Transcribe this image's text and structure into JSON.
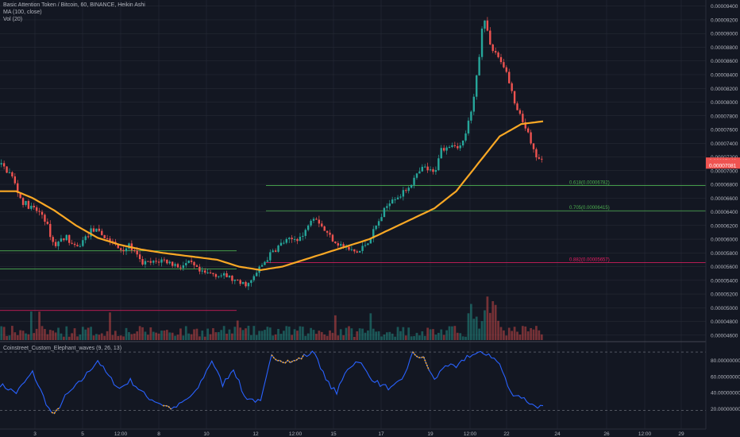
{
  "legend": {
    "title": "Basic Attention Token / Bitcoin, 60, BINANCE, Heikin Ashi",
    "ma": "MA (100, close)",
    "vol": "Vol (20)"
  },
  "oscillator": {
    "title": "Coinstreet_Custom_Elephant_waves (9, 26, 13)",
    "ticks": [
      "80.00000000",
      "60.00000000",
      "40.00000000",
      "20.00000000"
    ],
    "tick_values": [
      80,
      60,
      40,
      20
    ],
    "ylim": [
      5,
      95
    ],
    "levels": [
      90,
      18
    ]
  },
  "price_axis": {
    "ticks": [
      "0.00009400",
      "0.00009200",
      "0.00009000",
      "0.00008800",
      "0.00008600",
      "0.00008400",
      "0.00008200",
      "0.00008000",
      "0.00007800",
      "0.00007600",
      "0.00007400",
      "0.00007200",
      "0.00007000",
      "0.00006800",
      "0.00006600",
      "0.00006400",
      "0.00006200",
      "0.00006000",
      "0.00005800",
      "0.00005600",
      "0.00005400",
      "0.00005200",
      "0.00005000",
      "0.00004800",
      "0.00004600"
    ],
    "tick_values": [
      9400,
      9200,
      9000,
      8800,
      8600,
      8400,
      8200,
      8000,
      7800,
      7600,
      7400,
      7200,
      7000,
      6800,
      6600,
      6400,
      6200,
      6000,
      5800,
      5600,
      5400,
      5200,
      5000,
      4800,
      4600
    ],
    "ylim": [
      4540,
      9420
    ],
    "unit_note": "price in BTC (values ×1e-8)",
    "current_labels": [
      "0.00007140",
      "00:51:12",
      "0.00007081"
    ]
  },
  "time_axis": {
    "labels": [
      "3",
      "5",
      "12:00",
      "8",
      "10",
      "12",
      "12:00",
      "15",
      "17",
      "19",
      "12:00",
      "22",
      "24",
      "26",
      "12:00",
      "29"
    ]
  },
  "fib_levels": [
    {
      "label": "0.618(0.00006782)",
      "value": 6782,
      "color": "#4caf50"
    },
    {
      "label": "0.705(0.00006415)",
      "value": 6415,
      "color": "#4caf50"
    },
    {
      "label": "0.882(0.00005657)",
      "value": 5657,
      "color": "#e91e63"
    }
  ],
  "colors": {
    "background": "#131722",
    "up": "#26a69a",
    "down": "#ef5350",
    "ma": "#f9a825",
    "osc": "#2962ff",
    "osc_highlight": "#f9a825",
    "grid": "#2a2e39",
    "text": "#b2b5be"
  },
  "chart_data": {
    "type": "line",
    "title": "Basic Attention Token / Bitcoin, 60, BINANCE, Heikin Ashi",
    "x_range": [
      0,
      100
    ],
    "price_keypoints": [
      [
        0,
        7090
      ],
      [
        2,
        6950
      ],
      [
        4,
        6550
      ],
      [
        6,
        6450
      ],
      [
        8,
        6350
      ],
      [
        10,
        5900
      ],
      [
        12,
        6050
      ],
      [
        14,
        5850
      ],
      [
        17,
        6150
      ],
      [
        20,
        6000
      ],
      [
        22,
        5850
      ],
      [
        24,
        5900
      ],
      [
        26,
        5650
      ],
      [
        28,
        5650
      ],
      [
        30,
        5700
      ],
      [
        33,
        5600
      ],
      [
        35,
        5650
      ],
      [
        37,
        5500
      ],
      [
        39,
        5500
      ],
      [
        42,
        5450
      ],
      [
        44,
        5350
      ],
      [
        46,
        5350
      ],
      [
        48,
        5600
      ],
      [
        50,
        5800
      ],
      [
        52,
        5950
      ],
      [
        54,
        6000
      ],
      [
        56,
        6050
      ],
      [
        57,
        6300
      ],
      [
        58,
        6350
      ],
      [
        60,
        6100
      ],
      [
        62,
        5950
      ],
      [
        64,
        5850
      ],
      [
        66,
        5800
      ],
      [
        68,
        6000
      ],
      [
        70,
        6300
      ],
      [
        72,
        6600
      ],
      [
        74,
        6650
      ],
      [
        76,
        6850
      ],
      [
        78,
        7050
      ],
      [
        80,
        6950
      ],
      [
        81,
        7300
      ],
      [
        83,
        7400
      ],
      [
        85,
        7350
      ],
      [
        87,
        7900
      ],
      [
        88,
        8500
      ],
      [
        89,
        9300
      ],
      [
        90,
        8900
      ],
      [
        91,
        8750
      ],
      [
        93,
        8500
      ],
      [
        95,
        7900
      ],
      [
        97,
        7600
      ],
      [
        98,
        7300
      ],
      [
        99,
        7180
      ],
      [
        100,
        7120
      ]
    ],
    "ma_keypoints": [
      [
        0,
        6700
      ],
      [
        3,
        6700
      ],
      [
        6,
        6600
      ],
      [
        10,
        6420
      ],
      [
        14,
        6200
      ],
      [
        18,
        6020
      ],
      [
        22,
        5920
      ],
      [
        26,
        5850
      ],
      [
        30,
        5800
      ],
      [
        35,
        5750
      ],
      [
        40,
        5700
      ],
      [
        44,
        5600
      ],
      [
        48,
        5550
      ],
      [
        52,
        5600
      ],
      [
        56,
        5700
      ],
      [
        60,
        5800
      ],
      [
        64,
        5900
      ],
      [
        68,
        6000
      ],
      [
        72,
        6150
      ],
      [
        76,
        6300
      ],
      [
        80,
        6450
      ],
      [
        84,
        6700
      ],
      [
        88,
        7100
      ],
      [
        92,
        7500
      ],
      [
        96,
        7680
      ],
      [
        100,
        7720
      ]
    ],
    "volume_ylim": [
      0,
      100
    ],
    "oscillator_keypoints": [
      [
        0,
        50
      ],
      [
        3,
        40
      ],
      [
        6,
        65
      ],
      [
        9,
        20
      ],
      [
        10,
        12
      ],
      [
        12,
        35
      ],
      [
        15,
        55
      ],
      [
        18,
        80
      ],
      [
        20,
        60
      ],
      [
        22,
        45
      ],
      [
        24,
        55
      ],
      [
        27,
        35
      ],
      [
        30,
        25
      ],
      [
        32,
        20
      ],
      [
        36,
        40
      ],
      [
        39,
        80
      ],
      [
        41,
        50
      ],
      [
        43,
        70
      ],
      [
        45,
        35
      ],
      [
        48,
        28
      ],
      [
        50,
        85
      ],
      [
        52,
        80
      ],
      [
        54,
        78
      ],
      [
        56,
        85
      ],
      [
        58,
        90
      ],
      [
        60,
        55
      ],
      [
        62,
        40
      ],
      [
        64,
        70
      ],
      [
        66,
        80
      ],
      [
        68,
        60
      ],
      [
        70,
        50
      ],
      [
        72,
        45
      ],
      [
        74,
        55
      ],
      [
        76,
        88
      ],
      [
        78,
        82
      ],
      [
        80,
        55
      ],
      [
        82,
        75
      ],
      [
        84,
        70
      ],
      [
        86,
        85
      ],
      [
        88,
        88
      ],
      [
        90,
        88
      ],
      [
        92,
        75
      ],
      [
        94,
        40
      ],
      [
        96,
        35
      ],
      [
        98,
        25
      ],
      [
        100,
        22
      ]
    ],
    "oscillator_highlight_ranges": [
      [
        9.5,
        11
      ],
      [
        30,
        31.5
      ],
      [
        50,
        56
      ],
      [
        76,
        79
      ]
    ]
  }
}
